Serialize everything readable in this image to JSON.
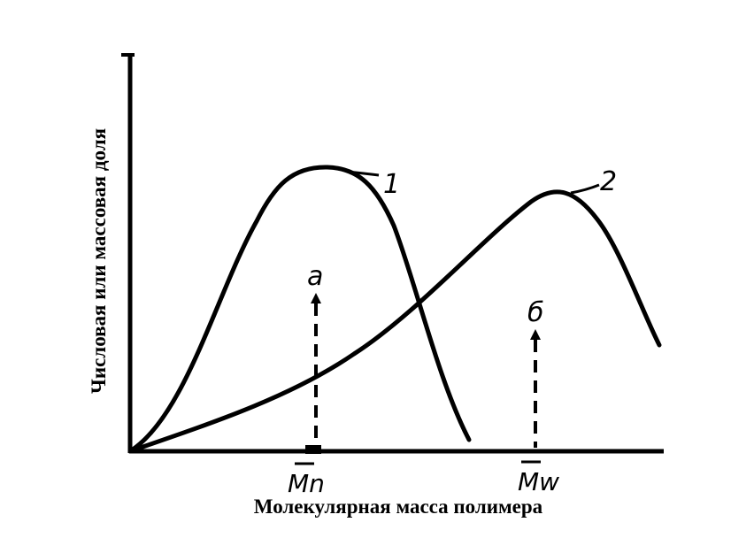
{
  "figure": {
    "y_axis_label": "Числовая или массовая доля",
    "x_axis_label": "Молекулярная масса полимера",
    "curve_labels": [
      "1",
      "2"
    ],
    "markers": [
      {
        "axis_label": "Mn",
        "letter": "a"
      },
      {
        "axis_label": "Mw",
        "letter": "б"
      }
    ],
    "line_color": "#000000"
  }
}
